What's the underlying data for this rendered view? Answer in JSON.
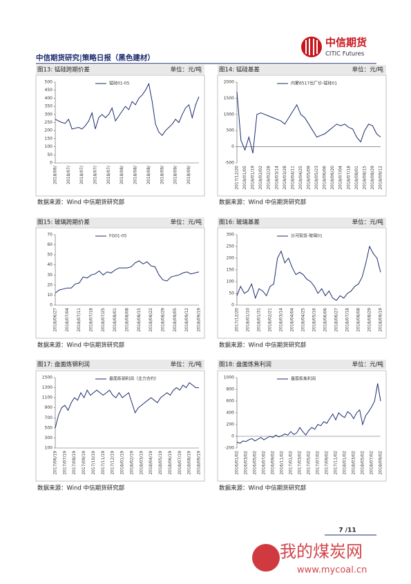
{
  "header": {
    "title": "中信期货研究|策略日报（黑色建材）",
    "logo_cn": "中信期货",
    "logo_en": "CITIC Futures"
  },
  "chart_data": [
    {
      "type": "line",
      "title": "图13: 锰硅跨期价差",
      "unit": "单位：元/吨",
      "source": "数据来源：Wind  中信期货研究部",
      "categories": [
        "2018/06/",
        null,
        null,
        null,
        "2018/07/",
        null,
        null,
        null,
        "2018/07/",
        null,
        null,
        null,
        "2018/07/",
        null,
        null,
        null,
        "2018/07/",
        null,
        null,
        null,
        "2018/08/",
        null,
        null,
        null,
        "2018/08/",
        null,
        null,
        null,
        "2018/08/",
        null,
        null,
        null,
        "2018/09/",
        null,
        null,
        null,
        "2018/09/",
        null,
        null,
        null,
        "2018/09/",
        null,
        null,
        null
      ],
      "series": [
        {
          "name": "锰硅01-05",
          "color": "#1a2a6c",
          "values": [
            270,
            260,
            250,
            245,
            270,
            210,
            215,
            220,
            210,
            230,
            260,
            310,
            210,
            280,
            300,
            280,
            300,
            340,
            260,
            290,
            320,
            350,
            330,
            380,
            360,
            400,
            420,
            450,
            490,
            380,
            240,
            190,
            170,
            200,
            220,
            240,
            270,
            250,
            300,
            340,
            360,
            280,
            360,
            410
          ]
        }
      ],
      "ylim": [
        0,
        500
      ],
      "yticks": [
        0,
        50,
        100,
        150,
        200,
        250,
        300,
        350,
        400,
        450,
        500
      ]
    },
    {
      "type": "line",
      "title": "图14: 锰硅基差",
      "unit": "单位：元/吨",
      "source": "数据来源：Wind  中信期货研究部",
      "categories": [
        "2017/12/20",
        null,
        "2018/01/05",
        null,
        "2018/01/19",
        null,
        "2018/02/02",
        null,
        "2018/02/28",
        null,
        "2018/03/14",
        null,
        "2018/03/28",
        null,
        "2018/04/11",
        null,
        "2018/04/25",
        null,
        "2018/05/09",
        null,
        "2018/05/23",
        null,
        "2018/06/06",
        null,
        "2018/06/20",
        null,
        "2018/07/04",
        null,
        "2018/07/18",
        null,
        "2018/08/01",
        null,
        "2018/08/15",
        null,
        "2018/08/29",
        null,
        "2018/09/12"
      ],
      "series": [
        {
          "name": "内蒙6517出厂价-锰硅01",
          "color": "#1a2a6c",
          "values": [
            1700,
            200,
            -100,
            300,
            -200,
            1000,
            1050,
            1000,
            950,
            900,
            850,
            800,
            700,
            900,
            1100,
            1300,
            1000,
            900,
            700,
            500,
            300,
            350,
            400,
            500,
            600,
            700,
            650,
            700,
            600,
            550,
            300,
            150,
            500,
            700,
            650,
            400,
            300
          ]
        }
      ],
      "ylim": [
        -500,
        2000
      ],
      "yticks": [
        -500,
        0,
        500,
        1000,
        1500,
        2000
      ]
    },
    {
      "type": "line",
      "title": "图15: 玻璃跨期价差",
      "unit": "单位：元/吨",
      "source": "数据来源：Wind  中信期货研究部",
      "categories": [
        "2018/06/27",
        null,
        null,
        "2018/07/04",
        null,
        null,
        "2018/07/11",
        null,
        null,
        "2018/07/18",
        null,
        null,
        "2018/07/25",
        null,
        null,
        "2018/08/01",
        null,
        null,
        "2018/08/08",
        null,
        null,
        "2018/08/15",
        null,
        null,
        "2018/08/22",
        null,
        null,
        "2018/08/29",
        null,
        null,
        "2018/09/05",
        null,
        null,
        "2018/09/12",
        null,
        null,
        "2018/09/19"
      ],
      "series": [
        {
          "name": "FG01-05",
          "color": "#1a2a6c",
          "values": [
            12,
            15,
            16,
            17,
            17,
            21,
            22,
            28,
            27,
            30,
            31,
            34,
            30,
            33,
            32,
            35,
            37,
            37,
            37,
            38,
            42,
            44,
            41,
            43,
            39,
            38,
            30,
            25,
            24,
            28,
            29,
            30,
            32,
            33,
            31,
            32,
            33
          ]
        }
      ],
      "ylim": [
        0,
        70
      ],
      "yticks": [
        0,
        10,
        20,
        30,
        40,
        50,
        60,
        70
      ]
    },
    {
      "type": "line",
      "title": "图16: 玻璃基差",
      "unit": "单位：元/吨",
      "source": "数据来源：Wind  中信期货研究部",
      "categories": [
        "2017/12/20",
        null,
        null,
        "2018/01/10",
        null,
        null,
        "2018/01/31",
        null,
        null,
        "2018/02/21",
        null,
        null,
        "2018/03/14",
        null,
        null,
        "2018/04/04",
        null,
        null,
        "2018/04/25",
        null,
        null,
        "2018/05/16",
        null,
        null,
        "2018/06/06",
        null,
        null,
        "2018/06/27",
        null,
        null,
        "2018/07/18",
        null,
        null,
        "2018/08/08",
        null,
        null,
        "2018/08/29",
        null,
        null,
        "2018/09/19"
      ],
      "series": [
        {
          "name": "沙河现货-玻璃01",
          "color": "#1a2a6c",
          "values": [
            40,
            80,
            50,
            60,
            90,
            30,
            70,
            60,
            40,
            80,
            90,
            200,
            230,
            180,
            200,
            160,
            130,
            140,
            130,
            110,
            100,
            80,
            50,
            70,
            40,
            60,
            30,
            20,
            40,
            30,
            50,
            60,
            80,
            90,
            120,
            180,
            250,
            220,
            200,
            140
          ]
        }
      ],
      "ylim": [
        0,
        300
      ],
      "yticks": [
        0,
        50,
        100,
        150,
        200,
        250,
        300
      ]
    },
    {
      "type": "line",
      "title": "图17: 盘面炼钢利润",
      "unit": "单位：元/吨",
      "source": "数据来源：Wind  中信期货研究部",
      "categories": [
        "2017/06/19",
        null,
        null,
        "2017/07/19",
        null,
        null,
        "2017/08/19",
        null,
        null,
        "2017/09/19",
        null,
        null,
        "2017/10/19",
        null,
        null,
        "2017/11/19",
        null,
        null,
        "2017/12/19",
        null,
        null,
        "2018/01/19",
        null,
        null,
        "2018/02/19",
        null,
        null,
        "2018/03/19",
        null,
        null,
        "2018/04/19",
        null,
        null,
        "2018/05/19",
        null,
        null,
        "2018/06/19",
        null,
        null,
        "2018/07/19",
        null,
        null,
        "2018/08/19",
        null,
        null,
        "2018/09/19"
      ],
      "series": [
        {
          "name": "盘面炼钢利润（主力合约）",
          "color": "#1a2a6c",
          "values": [
            500,
            750,
            900,
            950,
            850,
            1000,
            1100,
            1050,
            1200,
            1100,
            1250,
            1150,
            1200,
            1250,
            1200,
            1150,
            1200,
            1250,
            1150,
            1100,
            1200,
            1100,
            1150,
            1200,
            1000,
            800,
            900,
            950,
            1000,
            1050,
            1100,
            1050,
            1000,
            1100,
            1150,
            1200,
            1150,
            1250,
            1300,
            1250,
            1350,
            1300,
            1400,
            1350,
            1300,
            1300
          ]
        }
      ],
      "ylim": [
        100,
        1500
      ],
      "yticks": [
        100,
        300,
        500,
        700,
        900,
        1100,
        1300,
        1500
      ]
    },
    {
      "type": "line",
      "title": "图18: 盘面炼焦利润",
      "unit": "单位：元/吨",
      "source": "数据来源：Wind  中信期货研究部",
      "categories": [
        "2016/01/02",
        null,
        null,
        "2016/03/02",
        null,
        null,
        "2016/05/02",
        null,
        null,
        "2016/07/02",
        null,
        null,
        "2016/09/02",
        null,
        null,
        "2016/11/02",
        null,
        null,
        "2017/01/02",
        null,
        null,
        "2017/03/02",
        null,
        null,
        "2017/05/02",
        null,
        null,
        "2017/07/02",
        null,
        null,
        "2017/09/02",
        null,
        null,
        "2017/11/02",
        null,
        null,
        "2018/01/02",
        null,
        null,
        "2018/03/02",
        null,
        null,
        "2018/05/02",
        null,
        null,
        "2018/07/02",
        null,
        null,
        "2018/09/02"
      ],
      "series": [
        {
          "name": "盘面炼焦利润",
          "color": "#1a2a6c",
          "values": [
            -100,
            -120,
            -80,
            -90,
            -60,
            -40,
            -80,
            -50,
            -20,
            -60,
            -30,
            0,
            -20,
            20,
            -10,
            10,
            40,
            20,
            80,
            30,
            60,
            150,
            80,
            20,
            100,
            150,
            120,
            200,
            180,
            250,
            220,
            300,
            380,
            280,
            400,
            350,
            320,
            420,
            380,
            300,
            400,
            450,
            200,
            350,
            420,
            500,
            600,
            900,
            600
          ]
        }
      ],
      "ylim": [
        -200,
        1000
      ],
      "yticks": [
        -200,
        0,
        200,
        400,
        600,
        800,
        1000
      ]
    }
  ],
  "footer": {
    "page": "7 /11"
  },
  "watermark": {
    "text": "我的煤炭网",
    "url": "www.mycoal.cn"
  }
}
